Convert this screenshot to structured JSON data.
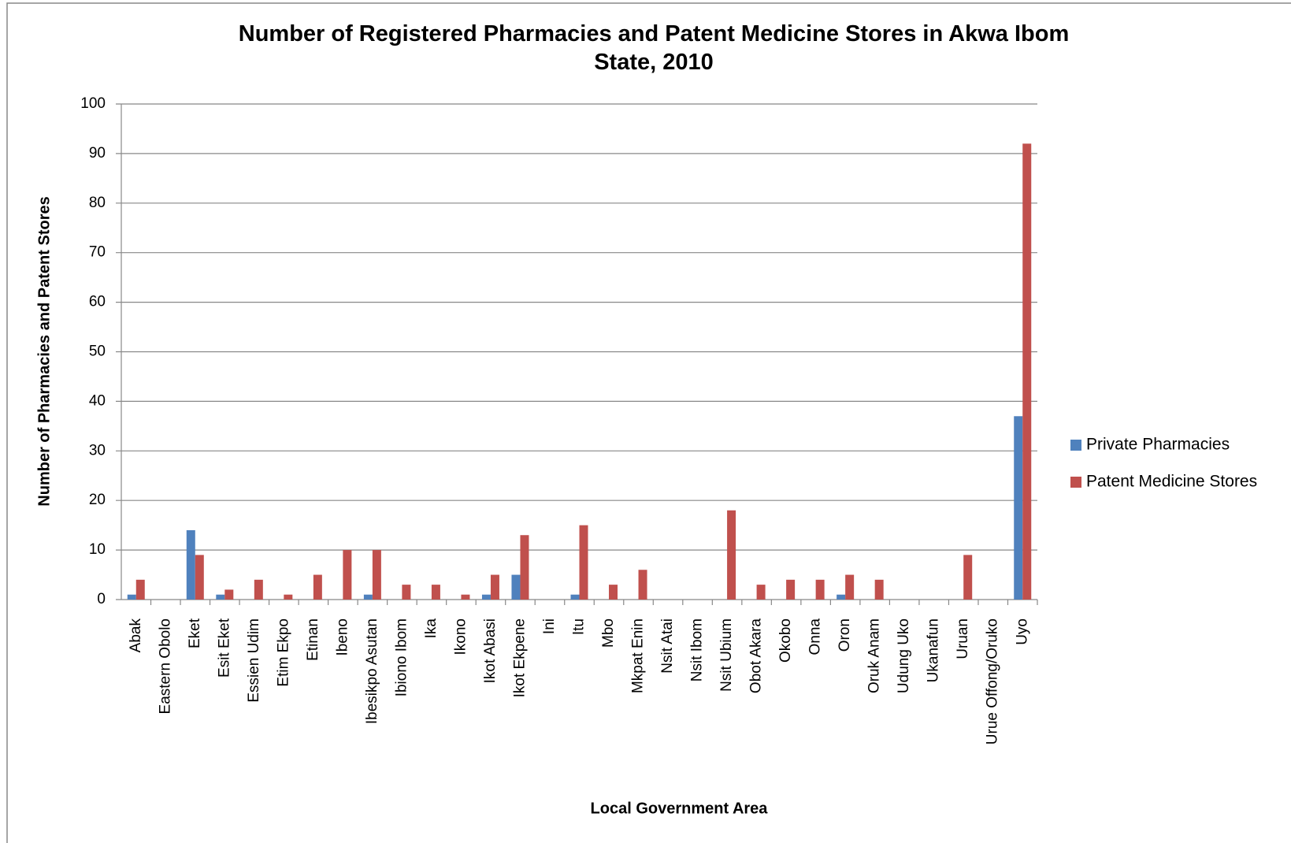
{
  "chart_data": {
    "type": "bar",
    "title": "Number of Registered Pharmacies and Patent Medicine Stores in Akwa Ibom State, 2010",
    "xlabel": "Local Government Area",
    "ylabel": "Number of Pharmacies and Patent Stores",
    "categories": [
      "Abak",
      "Eastern Obolo",
      "Eket",
      "Esit Eket",
      "Essien Udim",
      "Etim Ekpo",
      "Etinan",
      "Ibeno",
      "Ibesikpo Asutan",
      "Ibiono Ibom",
      "Ika",
      "Ikono",
      "Ikot Abasi",
      "Ikot Ekpene",
      "Ini",
      "Itu",
      "Mbo",
      "Mkpat Enin",
      "Nsit Atai",
      "Nsit Ibom",
      "Nsit Ubium",
      "Obot Akara",
      "Okobo",
      "Onna",
      "Oron",
      "Oruk Anam",
      "Udung Uko",
      "Ukanafun",
      "Uruan",
      "Urue Offong/Oruko",
      "Uyo"
    ],
    "series": [
      {
        "name": "Private Pharmacies",
        "color": "#4f81bd",
        "values": [
          1,
          0,
          14,
          1,
          0,
          0,
          0,
          0,
          1,
          0,
          0,
          0,
          1,
          5,
          0,
          1,
          0,
          0,
          0,
          0,
          0,
          0,
          0,
          0,
          1,
          0,
          0,
          0,
          0,
          0,
          37
        ]
      },
      {
        "name": "Patent Medicine Stores",
        "color": "#c0504d",
        "values": [
          4,
          0,
          9,
          2,
          4,
          1,
          5,
          10,
          10,
          3,
          3,
          1,
          5,
          13,
          0,
          15,
          3,
          6,
          0,
          0,
          18,
          3,
          4,
          4,
          5,
          4,
          0,
          0,
          9,
          0,
          92
        ]
      }
    ],
    "ylim": [
      0,
      100
    ],
    "yticks": [
      0,
      10,
      20,
      30,
      40,
      50,
      60,
      70,
      80,
      90,
      100
    ],
    "grid": true,
    "legend": "right"
  }
}
